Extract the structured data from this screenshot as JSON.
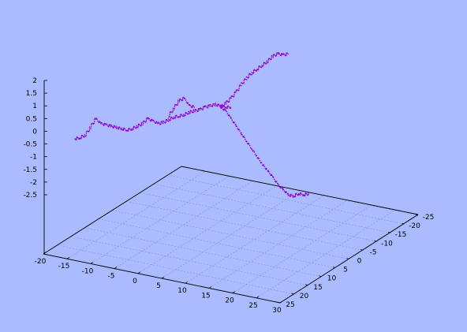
{
  "chart_data": {
    "type": "scatter3d",
    "title": "",
    "xlabel": "",
    "ylabel": "",
    "zlabel": "",
    "xlim": [
      -20,
      30
    ],
    "ylim": [
      -25,
      25
    ],
    "zlim": [
      -2.5,
      2
    ],
    "x_ticks": [
      "-20",
      "-15",
      "-10",
      "-5",
      "0",
      "5",
      "10",
      "15",
      "20",
      "25",
      "30"
    ],
    "y_ticks": [
      "-25",
      "-20",
      "-15",
      "-10",
      "-5",
      "0",
      "5",
      "10",
      "15",
      "20",
      "25"
    ],
    "z_ticks": [
      "2",
      "1.5",
      "1",
      "0.5",
      "0",
      "-0.5",
      "-1",
      "-1.5",
      "-2",
      "-2.5"
    ],
    "grid": true,
    "background": "#aabbff",
    "point_color": "#9400d3",
    "series": [
      {
        "values": [
          [
            -20,
            25,
            -0.3
          ],
          [
            -19,
            25,
            -0.25
          ],
          [
            -18,
            25,
            -0.15
          ],
          [
            -17,
            25,
            0.15
          ],
          [
            -16,
            25,
            0.5
          ],
          [
            -15,
            25,
            0.3
          ],
          [
            -14,
            25,
            0.25
          ],
          [
            -13,
            25,
            0.2
          ],
          [
            -12,
            25,
            0.15
          ],
          [
            -11,
            25,
            0.1
          ],
          [
            -10,
            25,
            0.05
          ],
          [
            -9,
            25,
            0.1
          ],
          [
            -8,
            25,
            0.2
          ],
          [
            -7,
            25,
            0.3
          ],
          [
            -6,
            25,
            0.5
          ],
          [
            -5,
            25,
            0.4
          ],
          [
            -4,
            25,
            0.3
          ],
          [
            -3,
            25,
            0.35
          ],
          [
            -2,
            25,
            0.45
          ],
          [
            -1,
            25,
            0.55
          ],
          [
            0,
            25,
            0.6
          ],
          [
            1,
            25,
            0.65
          ],
          [
            2,
            25,
            0.75
          ],
          [
            3,
            25,
            0.8
          ],
          [
            4,
            25,
            0.85
          ],
          [
            5,
            25,
            0.95
          ],
          [
            6,
            25,
            1.0
          ],
          [
            7,
            25,
            1.05
          ],
          [
            8,
            25,
            1.0
          ],
          [
            9,
            25,
            0.95
          ],
          [
            10,
            25,
            0.95
          ]
        ]
      },
      {
        "values": [
          [
            -2,
            25,
            0.6
          ],
          [
            -1,
            25,
            0.9
          ],
          [
            0,
            25,
            1.2
          ],
          [
            1,
            25,
            1.3
          ],
          [
            2,
            25,
            1.0
          ],
          [
            3,
            25,
            0.95
          ]
        ]
      },
      {
        "values": [
          [
            8,
            25,
            0.95
          ],
          [
            9,
            25,
            1.1
          ],
          [
            10,
            25,
            1.3
          ],
          [
            11,
            25,
            1.55
          ],
          [
            12,
            25,
            1.85
          ],
          [
            13,
            25,
            2.1
          ],
          [
            14,
            25,
            2.3
          ],
          [
            15,
            25,
            2.45
          ],
          [
            16,
            25,
            2.6
          ],
          [
            17,
            25,
            2.75
          ],
          [
            18,
            25,
            2.95
          ],
          [
            19,
            25,
            3.05
          ],
          [
            20,
            25,
            3.0
          ],
          [
            21,
            25,
            3.05
          ]
        ]
      },
      {
        "values": [
          [
            8,
            25,
            0.95
          ],
          [
            9,
            25,
            0.8
          ],
          [
            10,
            25,
            0.5
          ],
          [
            11,
            25,
            0.2
          ],
          [
            12,
            25,
            -0.1
          ],
          [
            13,
            25,
            -0.4
          ],
          [
            14,
            25,
            -0.7
          ],
          [
            15,
            25,
            -1.0
          ],
          [
            16,
            25,
            -1.3
          ],
          [
            17,
            25,
            -1.55
          ],
          [
            18,
            25,
            -1.8
          ],
          [
            19,
            25,
            -2.1
          ],
          [
            20,
            25,
            -2.3
          ],
          [
            21,
            25,
            -2.5
          ],
          [
            22,
            25,
            -2.55
          ],
          [
            23,
            25,
            -2.45
          ],
          [
            24,
            25,
            -2.5
          ],
          [
            25,
            25,
            -2.45
          ]
        ]
      }
    ]
  }
}
